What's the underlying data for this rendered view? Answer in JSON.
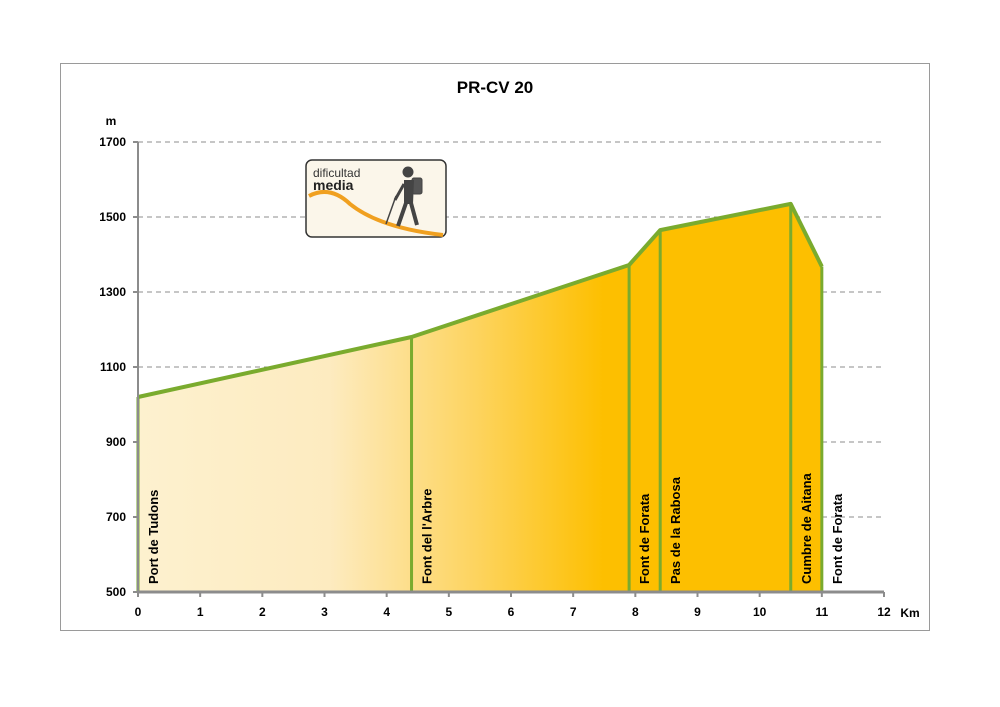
{
  "chart_data": {
    "type": "area",
    "title": "PR-CV 20",
    "xlabel": "Km",
    "ylabel": "m",
    "xlim": [
      0,
      12
    ],
    "ylim": [
      500,
      1700
    ],
    "x_ticks": [
      0,
      1,
      2,
      3,
      4,
      5,
      6,
      7,
      8,
      9,
      10,
      11,
      12
    ],
    "y_ticks": [
      500,
      700,
      900,
      1100,
      1300,
      1500,
      1700
    ],
    "grid": "horizontal-dashed",
    "profile": [
      {
        "x": 0,
        "y": 1020
      },
      {
        "x": 4.4,
        "y": 1180
      },
      {
        "x": 7.9,
        "y": 1372
      },
      {
        "x": 8.4,
        "y": 1465
      },
      {
        "x": 10.5,
        "y": 1535
      },
      {
        "x": 11,
        "y": 1368
      }
    ],
    "waypoints": [
      {
        "x": 0,
        "label": "Port de Tudons"
      },
      {
        "x": 4.4,
        "label": "Font del l'Arbre"
      },
      {
        "x": 7.9,
        "label": "Font de Forata"
      },
      {
        "x": 8.4,
        "label": "Pas de la Rabosa"
      },
      {
        "x": 10.5,
        "label": "Cumbre de Aitana"
      },
      {
        "x": 11,
        "label": "Font de Forata"
      }
    ],
    "colors": {
      "line": "#7aab2e",
      "fill_light": "#fdf1cf",
      "fill_dark": "#fdbf00",
      "grid": "#8c8c8c",
      "axis": "#8c8c8c"
    }
  },
  "badge": {
    "line1": "dificultad",
    "line2": "media",
    "icon": "hiker-icon"
  }
}
